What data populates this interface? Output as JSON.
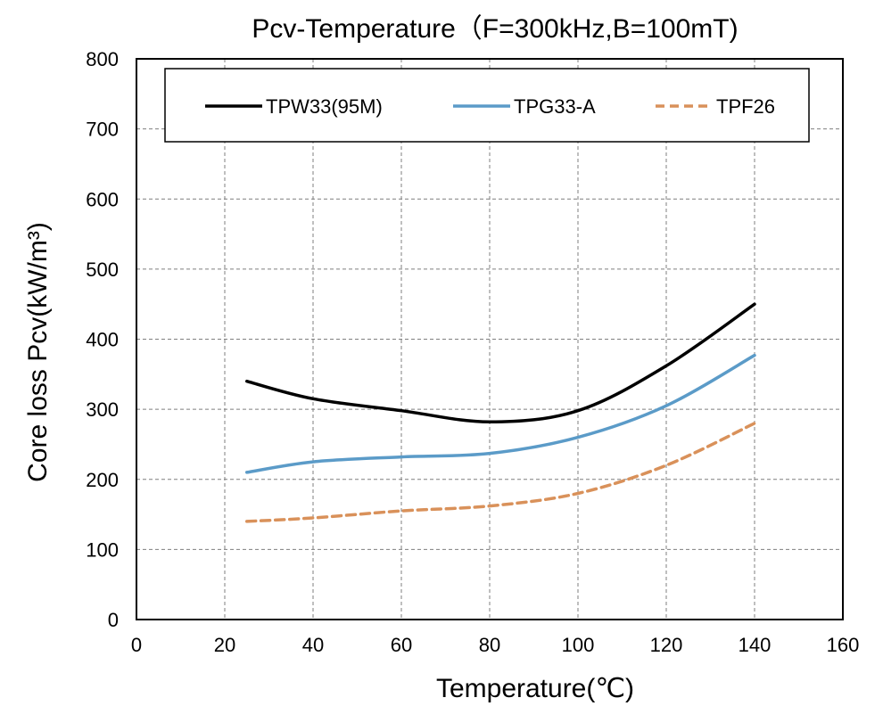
{
  "chart_data": {
    "type": "line",
    "title": "Pcv-Temperature（F=300kHz,B=100mT)",
    "xlabel": "Temperature(℃)",
    "ylabel": "Core loss Pcv(kW/m³)",
    "xlim": [
      0,
      160
    ],
    "ylim": [
      0,
      800
    ],
    "xticks": [
      0,
      20,
      40,
      60,
      80,
      100,
      120,
      140,
      160
    ],
    "yticks": [
      0,
      100,
      200,
      300,
      400,
      500,
      600,
      700,
      800
    ],
    "grid": true,
    "legend_position": "top",
    "series": [
      {
        "name": "TPW33(95M)",
        "color": "#000000",
        "style": "solid",
        "x": [
          25,
          40,
          60,
          80,
          100,
          120,
          140
        ],
        "y": [
          340,
          315,
          298,
          282,
          298,
          362,
          450
        ]
      },
      {
        "name": "TPG33-A",
        "color": "#5b9bc8",
        "style": "solid",
        "x": [
          25,
          40,
          60,
          80,
          100,
          120,
          140
        ],
        "y": [
          210,
          225,
          232,
          237,
          260,
          305,
          377
        ]
      },
      {
        "name": "TPF26",
        "color": "#d9915a",
        "style": "dashed",
        "x": [
          25,
          40,
          60,
          80,
          100,
          120,
          140
        ],
        "y": [
          140,
          145,
          155,
          162,
          180,
          220,
          280
        ]
      }
    ]
  }
}
